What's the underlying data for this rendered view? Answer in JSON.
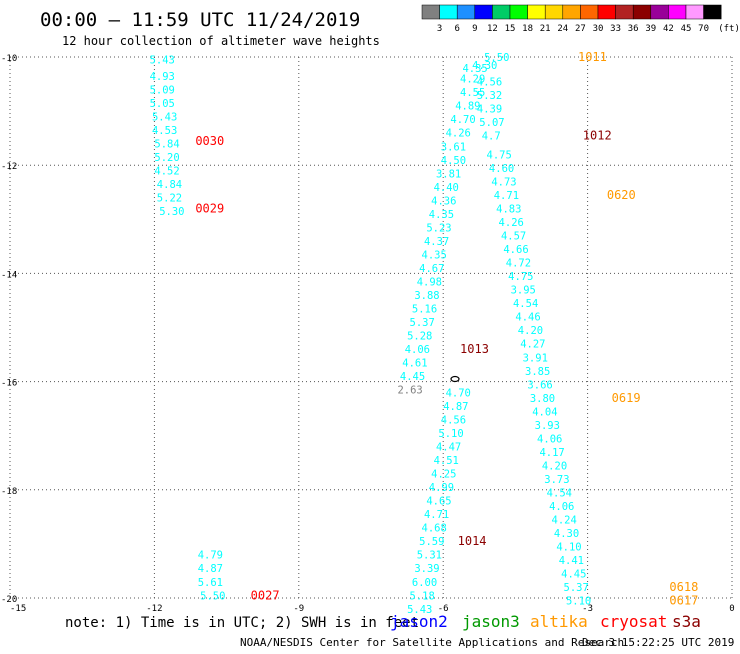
{
  "header": {
    "title": "00:00 – 11:59 UTC 11/24/2019",
    "subtitle": "12 hour collection of altimeter wave heights"
  },
  "color_scale": {
    "labels": [
      "3",
      "6",
      "9",
      "12",
      "15",
      "18",
      "21",
      "24",
      "27",
      "30",
      "33",
      "36",
      "39",
      "42",
      "45",
      "70"
    ],
    "unit": "(ft)",
    "colors": [
      "#808080",
      "#00ffff",
      "#1e90ff",
      "#0000ff",
      "#00cc66",
      "#00ff00",
      "#ffff00",
      "#ffd700",
      "#ffa500",
      "#ff6600",
      "#ff0000",
      "#b22222",
      "#8b0000",
      "#990099",
      "#ff00ff",
      "#ff99ff",
      "#000000"
    ]
  },
  "map": {
    "lat_range": [
      -20,
      -10
    ],
    "lon_range": [
      -15,
      0
    ],
    "lat_gridlines": [
      -10,
      -12,
      -14,
      -16,
      -18,
      -20
    ],
    "lon_gridlines": [
      -15,
      -12,
      -9,
      -6,
      -3,
      0
    ],
    "lat_tick_labels": [
      "-10",
      "-12",
      "-14",
      "-16",
      "-18",
      "-20"
    ],
    "lon_tick_labels": [
      "-15",
      "-12",
      "-9",
      "-6",
      "-3",
      "0"
    ],
    "colors": {
      "jason2": "#0000ff",
      "jason3": "#009900",
      "altika": "#ff9900",
      "cryosat": "#ff0000",
      "s3a": "#8b0000",
      "obs": "#00ffff",
      "obs_low": "#808080"
    }
  },
  "tracks": [
    {
      "satellite": "cryosat",
      "values": [
        {
          "lon": -12.1,
          "lat": -10.05,
          "v": "5.43"
        },
        {
          "lon": -12.1,
          "lat": -10.35,
          "v": "4.93"
        },
        {
          "lon": -12.1,
          "lat": -10.6,
          "v": "5.09"
        },
        {
          "lon": -12.1,
          "lat": -10.85,
          "v": "5.05"
        },
        {
          "lon": -12.05,
          "lat": -11.1,
          "v": "5.43"
        },
        {
          "lon": -12.05,
          "lat": -11.35,
          "v": "4.53"
        },
        {
          "lon": -12.0,
          "lat": -11.6,
          "v": "5.84"
        },
        {
          "lon": -12.0,
          "lat": -11.85,
          "v": "5.20"
        },
        {
          "lon": -12.0,
          "lat": -12.1,
          "v": "4.52"
        },
        {
          "lon": -11.95,
          "lat": -12.35,
          "v": "4.84"
        },
        {
          "lon": -11.95,
          "lat": -12.6,
          "v": "5.22"
        },
        {
          "lon": -11.9,
          "lat": -12.85,
          "v": "5.30"
        }
      ],
      "pass_labels": [
        {
          "lon": -11.15,
          "lat": -11.55,
          "text": "0030"
        },
        {
          "lon": -11.15,
          "lat": -12.8,
          "text": "0029"
        }
      ]
    },
    {
      "satellite": "cryosat",
      "values": [
        {
          "lon": -11.1,
          "lat": -19.2,
          "v": "4.79"
        },
        {
          "lon": -11.1,
          "lat": -19.45,
          "v": "4.87"
        },
        {
          "lon": -11.1,
          "lat": -19.7,
          "v": "5.61"
        },
        {
          "lon": -11.05,
          "lat": -19.95,
          "v": "5.50"
        }
      ],
      "pass_labels": [
        {
          "lon": -10.0,
          "lat": -19.95,
          "text": "0027"
        }
      ]
    },
    {
      "satellite": "s3a",
      "values": [
        {
          "lon": -5.95,
          "lat": -16.2,
          "v": "4.70"
        },
        {
          "lon": -6.0,
          "lat": -16.45,
          "v": "4.87"
        },
        {
          "lon": -6.05,
          "lat": -16.7,
          "v": "4.56"
        },
        {
          "lon": -6.1,
          "lat": -16.95,
          "v": "5.10"
        },
        {
          "lon": -6.15,
          "lat": -17.2,
          "v": "4.47"
        },
        {
          "lon": -6.2,
          "lat": -17.45,
          "v": "4.51"
        },
        {
          "lon": -6.25,
          "lat": -17.7,
          "v": "4.25"
        },
        {
          "lon": -6.3,
          "lat": -17.95,
          "v": "4.99"
        },
        {
          "lon": -6.35,
          "lat": -18.2,
          "v": "4.65"
        },
        {
          "lon": -6.4,
          "lat": -18.45,
          "v": "4.71"
        },
        {
          "lon": -6.45,
          "lat": -18.7,
          "v": "4.68"
        },
        {
          "lon": -6.5,
          "lat": -18.95,
          "v": "5.59"
        },
        {
          "lon": -6.55,
          "lat": -19.2,
          "v": "5.31"
        },
        {
          "lon": -6.6,
          "lat": -19.45,
          "v": "3.39"
        },
        {
          "lon": -6.65,
          "lat": -19.7,
          "v": "6.00"
        },
        {
          "lon": -6.7,
          "lat": -19.95,
          "v": "5.18"
        },
        {
          "lon": -6.75,
          "lat": -20.2,
          "v": "5.43"
        }
      ],
      "pass_labels": [
        {
          "lon": -5.7,
          "lat": -18.95,
          "text": "1014"
        }
      ]
    },
    {
      "satellite": "s3a",
      "values": [
        {
          "lon": -5.6,
          "lat": -10.2,
          "v": "4.35"
        },
        {
          "lon": -5.65,
          "lat": -10.4,
          "v": "4.29"
        },
        {
          "lon": -5.65,
          "lat": -10.65,
          "v": "4.55"
        },
        {
          "lon": -5.75,
          "lat": -10.9,
          "v": "4.89"
        },
        {
          "lon": -5.85,
          "lat": -11.15,
          "v": "4.70"
        },
        {
          "lon": -5.95,
          "lat": -11.4,
          "v": "4.26"
        },
        {
          "lon": -6.05,
          "lat": -11.65,
          "v": "3.61"
        },
        {
          "lon": -6.05,
          "lat": -11.9,
          "v": "4.50"
        },
        {
          "lon": -6.15,
          "lat": -12.15,
          "v": "3.81"
        },
        {
          "lon": -6.2,
          "lat": -12.4,
          "v": "4.40"
        },
        {
          "lon": -6.25,
          "lat": -12.65,
          "v": "4.36"
        },
        {
          "lon": -6.3,
          "lat": -12.9,
          "v": "4.35"
        },
        {
          "lon": -6.35,
          "lat": -13.15,
          "v": "5.23"
        },
        {
          "lon": -6.4,
          "lat": -13.4,
          "v": "4.37"
        },
        {
          "lon": -6.45,
          "lat": -13.65,
          "v": "4.35"
        },
        {
          "lon": -6.5,
          "lat": -13.9,
          "v": "4.67"
        },
        {
          "lon": -6.55,
          "lat": -14.15,
          "v": "4.98"
        },
        {
          "lon": -6.6,
          "lat": -14.4,
          "v": "3.88"
        },
        {
          "lon": -6.65,
          "lat": -14.65,
          "v": "5.16"
        },
        {
          "lon": -6.7,
          "lat": -14.9,
          "v": "5.37"
        },
        {
          "lon": -6.75,
          "lat": -15.15,
          "v": "5.28"
        },
        {
          "lon": -6.8,
          "lat": -15.4,
          "v": "4.06"
        },
        {
          "lon": -6.85,
          "lat": -15.65,
          "v": "4.61"
        },
        {
          "lon": -6.9,
          "lat": -15.9,
          "v": "4.45"
        },
        {
          "lon": -6.95,
          "lat": -16.15,
          "v": "2.63"
        }
      ],
      "pass_labels": [
        {
          "lon": -5.65,
          "lat": -15.4,
          "text": "1013"
        }
      ]
    },
    {
      "satellite": "s3a",
      "values": [
        {
          "lon": -5.4,
          "lat": -10.15,
          "v": "4.30"
        },
        {
          "lon": -5.3,
          "lat": -10.45,
          "v": "4.56"
        },
        {
          "lon": -5.3,
          "lat": -10.7,
          "v": "5.32"
        },
        {
          "lon": -5.3,
          "lat": -10.95,
          "v": "4.39"
        },
        {
          "lon": -5.25,
          "lat": -11.2,
          "v": "5.07"
        },
        {
          "lon": -5.2,
          "lat": -11.45,
          "v": "4.7"
        }
      ],
      "pass_labels": [
        {
          "lon": -3.1,
          "lat": -11.45,
          "text": "1012"
        }
      ]
    },
    {
      "satellite": "altika",
      "values": [
        {
          "lon": -5.15,
          "lat": -10.0,
          "v": "5.50"
        },
        {
          "lon": -5.1,
          "lat": -11.8,
          "v": "4.75"
        },
        {
          "lon": -5.05,
          "lat": -12.05,
          "v": "4.60"
        },
        {
          "lon": -5.0,
          "lat": -12.3,
          "v": "4.73"
        },
        {
          "lon": -4.95,
          "lat": -12.55,
          "v": "4.71"
        },
        {
          "lon": -4.9,
          "lat": -12.8,
          "v": "4.83"
        },
        {
          "lon": -4.85,
          "lat": -13.05,
          "v": "4.26"
        },
        {
          "lon": -4.8,
          "lat": -13.3,
          "v": "4.57"
        },
        {
          "lon": -4.75,
          "lat": -13.55,
          "v": "4.66"
        },
        {
          "lon": -4.7,
          "lat": -13.8,
          "v": "4.72"
        },
        {
          "lon": -4.65,
          "lat": -14.05,
          "v": "4.75"
        },
        {
          "lon": -4.6,
          "lat": -14.3,
          "v": "3.95"
        },
        {
          "lon": -4.55,
          "lat": -14.55,
          "v": "4.54"
        },
        {
          "lon": -4.5,
          "lat": -14.8,
          "v": "4.46"
        },
        {
          "lon": -4.45,
          "lat": -15.05,
          "v": "4.20"
        },
        {
          "lon": -4.4,
          "lat": -15.3,
          "v": "4.27"
        },
        {
          "lon": -4.35,
          "lat": -15.55,
          "v": "3.91"
        },
        {
          "lon": -4.3,
          "lat": -15.8,
          "v": "3.85"
        },
        {
          "lon": -4.25,
          "lat": -16.05,
          "v": "3.66"
        },
        {
          "lon": -4.2,
          "lat": -16.3,
          "v": "3.80"
        },
        {
          "lon": -4.15,
          "lat": -16.55,
          "v": "4.04"
        },
        {
          "lon": -4.1,
          "lat": -16.8,
          "v": "3.93"
        },
        {
          "lon": -4.05,
          "lat": -17.05,
          "v": "4.06"
        },
        {
          "lon": -4.0,
          "lat": -17.3,
          "v": "4.17"
        },
        {
          "lon": -3.95,
          "lat": -17.55,
          "v": "4.20"
        },
        {
          "lon": -3.9,
          "lat": -17.8,
          "v": "3.73"
        },
        {
          "lon": -3.85,
          "lat": -18.05,
          "v": "4.54"
        },
        {
          "lon": -3.8,
          "lat": -18.3,
          "v": "4.06"
        },
        {
          "lon": -3.75,
          "lat": -18.55,
          "v": "4.24"
        },
        {
          "lon": -3.7,
          "lat": -18.8,
          "v": "4.30"
        },
        {
          "lon": -3.65,
          "lat": -19.05,
          "v": "4.10"
        },
        {
          "lon": -3.6,
          "lat": -19.3,
          "v": "4.41"
        },
        {
          "lon": -3.55,
          "lat": -19.55,
          "v": "4.45"
        },
        {
          "lon": -3.5,
          "lat": -19.8,
          "v": "5.37"
        },
        {
          "lon": -3.45,
          "lat": -20.05,
          "v": "5.10"
        }
      ],
      "pass_labels": [
        {
          "lon": -3.2,
          "lat": -10.0,
          "text": "1011"
        },
        {
          "lon": -2.6,
          "lat": -12.55,
          "text": "0620"
        },
        {
          "lon": -2.5,
          "lat": -16.3,
          "text": "0619"
        },
        {
          "lon": -1.3,
          "lat": -19.8,
          "text": "0618"
        },
        {
          "lon": -1.3,
          "lat": -20.05,
          "text": "0617"
        }
      ]
    }
  ],
  "legend": {
    "note": "note: 1) Time is in UTC; 2) SWH is in feet",
    "items": [
      {
        "key": "jason2",
        "label": "jason2"
      },
      {
        "key": "jason3",
        "label": "jason3"
      },
      {
        "key": "altika",
        "label": "altika"
      },
      {
        "key": "cryosat",
        "label": "cryosat"
      },
      {
        "key": "s3a",
        "label": "s3a"
      }
    ]
  },
  "footer": {
    "credit": "NOAA/NESDIS Center for Satellite Applications and Research",
    "timestamp": "Dec  3 15:22:25 UTC 2019"
  }
}
